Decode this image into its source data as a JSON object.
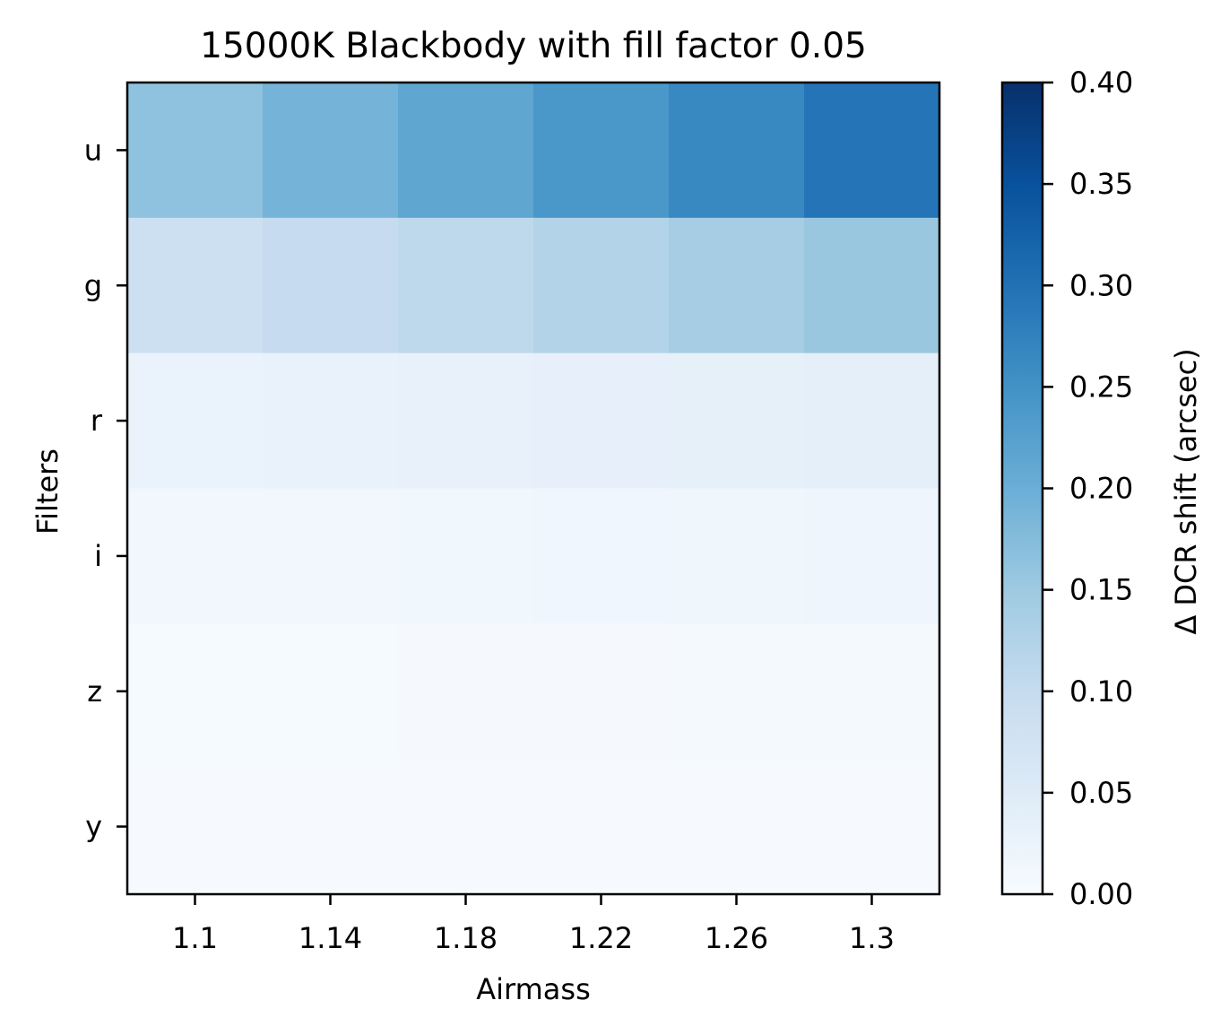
{
  "chart_data": {
    "type": "heatmap",
    "title": "15000K Blackbody with fill factor 0.05",
    "xlabel": "Airmass",
    "ylabel": "Filters",
    "x_tick_labels": [
      "1.1",
      "1.14",
      "1.18",
      "1.22",
      "1.26",
      "1.3"
    ],
    "y_tick_labels": [
      "u",
      "g",
      "r",
      "i",
      "z",
      "y"
    ],
    "values": [
      [
        0.165,
        0.19,
        0.215,
        0.24,
        0.265,
        0.295
      ],
      [
        0.085,
        0.1,
        0.11,
        0.125,
        0.14,
        0.155
      ],
      [
        0.026,
        0.028,
        0.03,
        0.033,
        0.035,
        0.038
      ],
      [
        0.012,
        0.013,
        0.014,
        0.015,
        0.016,
        0.018
      ],
      [
        0.004,
        0.004,
        0.005,
        0.005,
        0.006,
        0.006
      ],
      [
        0.002,
        0.002,
        0.002,
        0.003,
        0.003,
        0.003
      ]
    ],
    "colorbar": {
      "label": "Δ DCR shift (arcsec)",
      "range": [
        0.0,
        0.4
      ],
      "tick_labels": [
        "0.00",
        "0.05",
        "0.10",
        "0.15",
        "0.20",
        "0.25",
        "0.30",
        "0.35",
        "0.40"
      ],
      "colormap": "Blues"
    },
    "grid": false
  }
}
